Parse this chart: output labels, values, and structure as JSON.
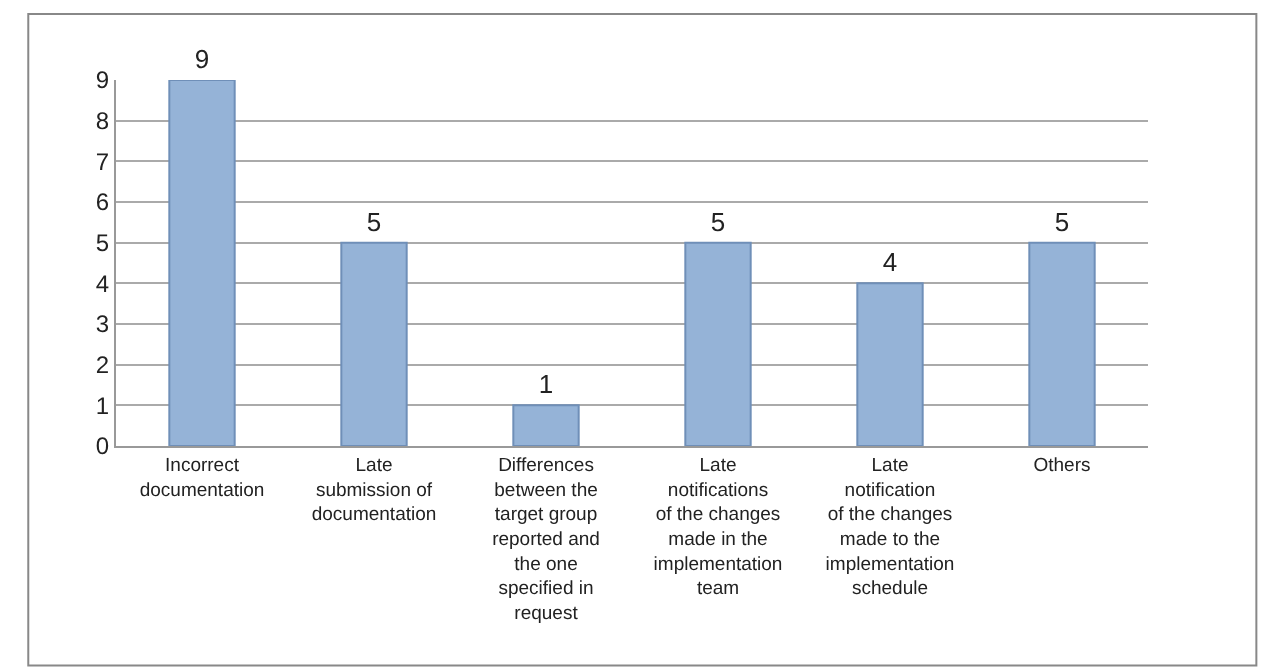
{
  "chart_data": {
    "type": "bar",
    "categories": [
      "Incorrect documentation",
      "Late submission of documentation",
      "Differences between the target group reported and the one specified in request",
      "Late notifications of the changes made in the implementation team",
      "Late notification of the changes made to the implementation schedule",
      "Others"
    ],
    "values": [
      9,
      5,
      1,
      5,
      4,
      5
    ],
    "color": "#95b3d7",
    "ylim": [
      0,
      9
    ],
    "yticks": [
      0,
      1,
      2,
      3,
      4,
      5,
      6,
      7,
      8,
      9
    ],
    "grid": "y",
    "data_labels": true
  }
}
